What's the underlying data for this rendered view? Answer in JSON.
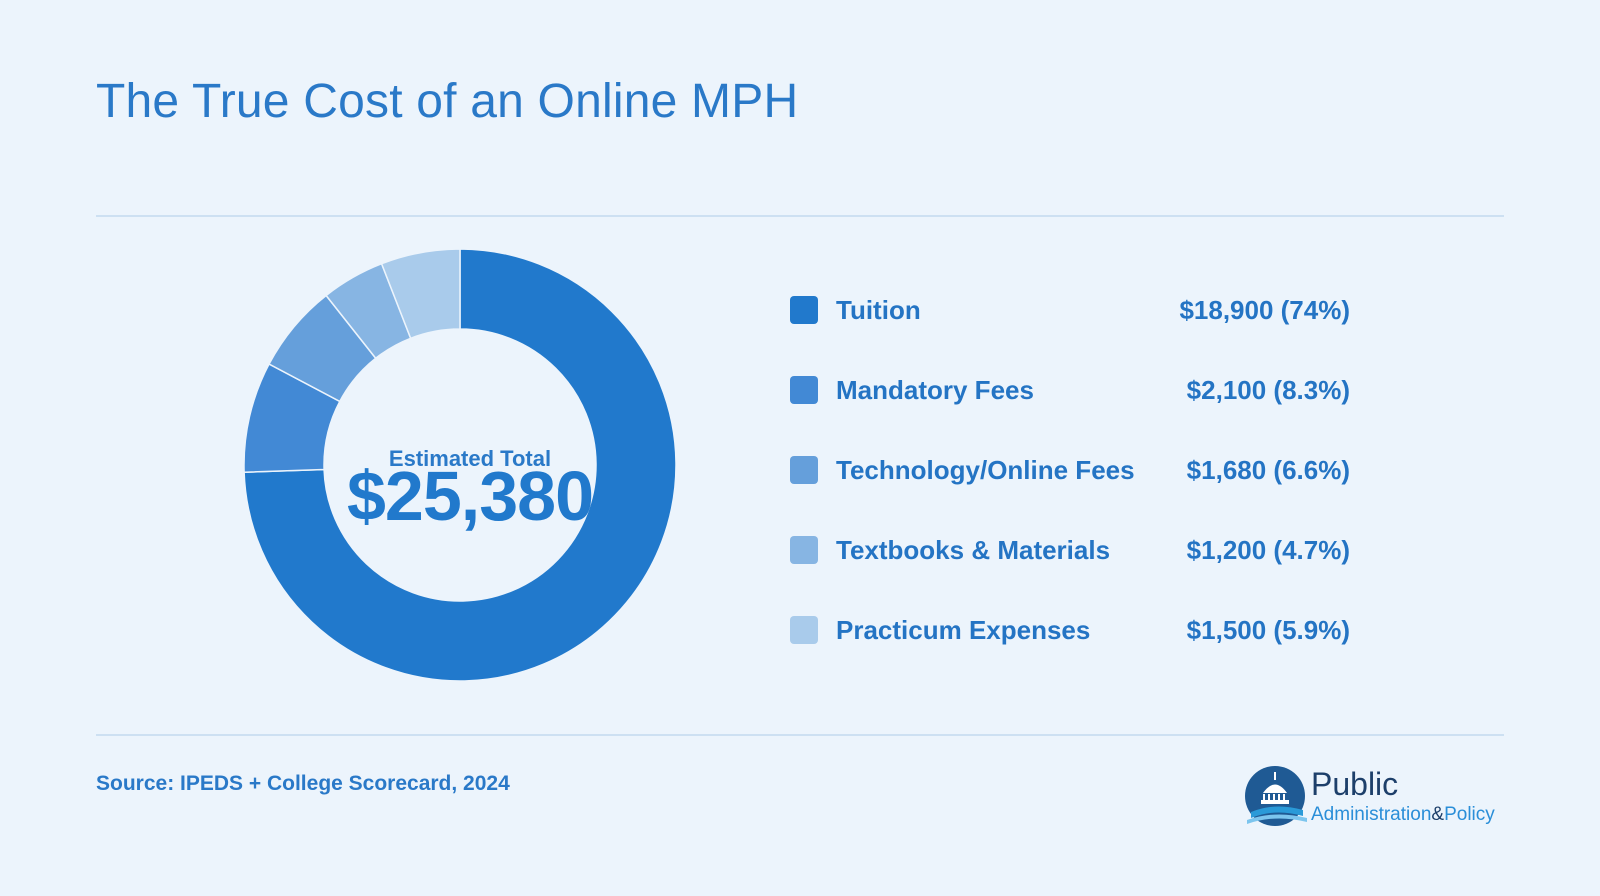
{
  "title": "The True Cost of an Online MPH",
  "center": {
    "label": "Estimated Total",
    "value": "$25,380"
  },
  "source": "Source: IPEDS + College Scorecard, 2024",
  "logo": {
    "line1": "Public",
    "line2a": "Administration",
    "amp": "&",
    "line2b": "Policy"
  },
  "chart_data": {
    "type": "pie",
    "donut": true,
    "total": 25380,
    "series": [
      {
        "name": "Tuition",
        "value": 18900,
        "display": "$18,900 (74%)",
        "color": "#2179cc"
      },
      {
        "name": "Mandatory Fees",
        "value": 2100,
        "display": "$2,100 (8.3%)",
        "color": "#4289d5"
      },
      {
        "name": "Technology/Online Fees",
        "value": 1680,
        "display": "$1,680 (6.6%)",
        "color": "#659fdb"
      },
      {
        "name": "Textbooks & Materials",
        "value": 1200,
        "display": "$1,200 (4.7%)",
        "color": "#87b5e3"
      },
      {
        "name": "Practicum Expenses",
        "value": 1500,
        "display": "$1,500 (5.9%)",
        "color": "#a9cbeb"
      }
    ]
  }
}
